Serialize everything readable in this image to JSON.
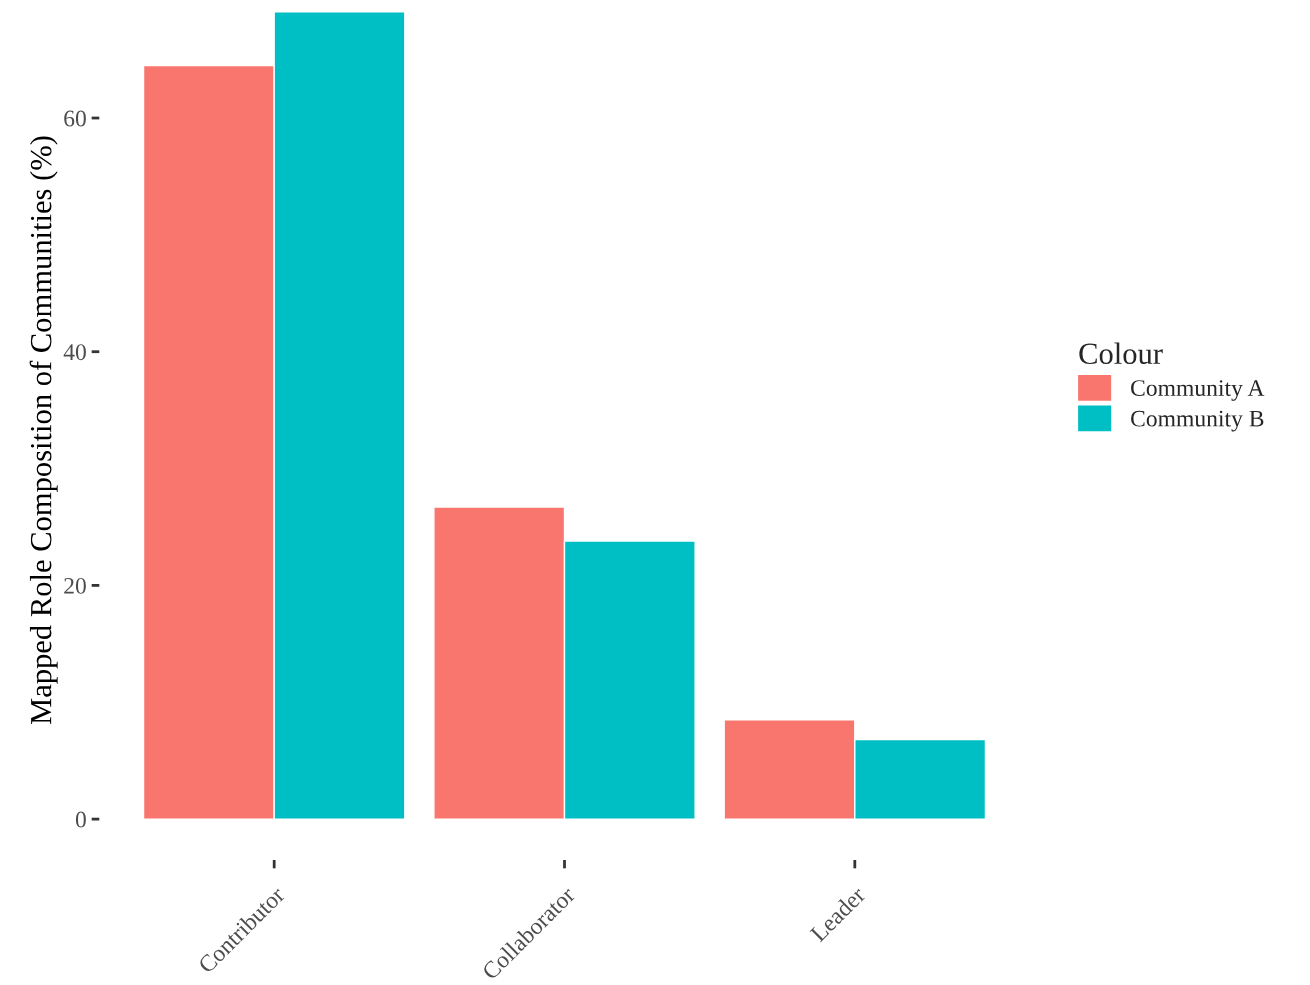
{
  "chart_data": {
    "type": "bar",
    "ylabel": "Mapped Role Composition of Communities (%)",
    "legend_title": "Colour",
    "categories": [
      "Contributor",
      "Collaborator",
      "Leader"
    ],
    "series": [
      {
        "name": "Community A",
        "color": "#f8766d",
        "values": [
          64.5,
          26.7,
          8.5
        ]
      },
      {
        "name": "Community B",
        "color": "#00bfc4",
        "values": [
          69.1,
          23.8,
          6.8
        ]
      }
    ],
    "ylim": [
      -3.5,
      70.1
    ],
    "yticks": [
      0,
      20,
      40,
      60
    ],
    "grid": false,
    "legend": "right"
  }
}
